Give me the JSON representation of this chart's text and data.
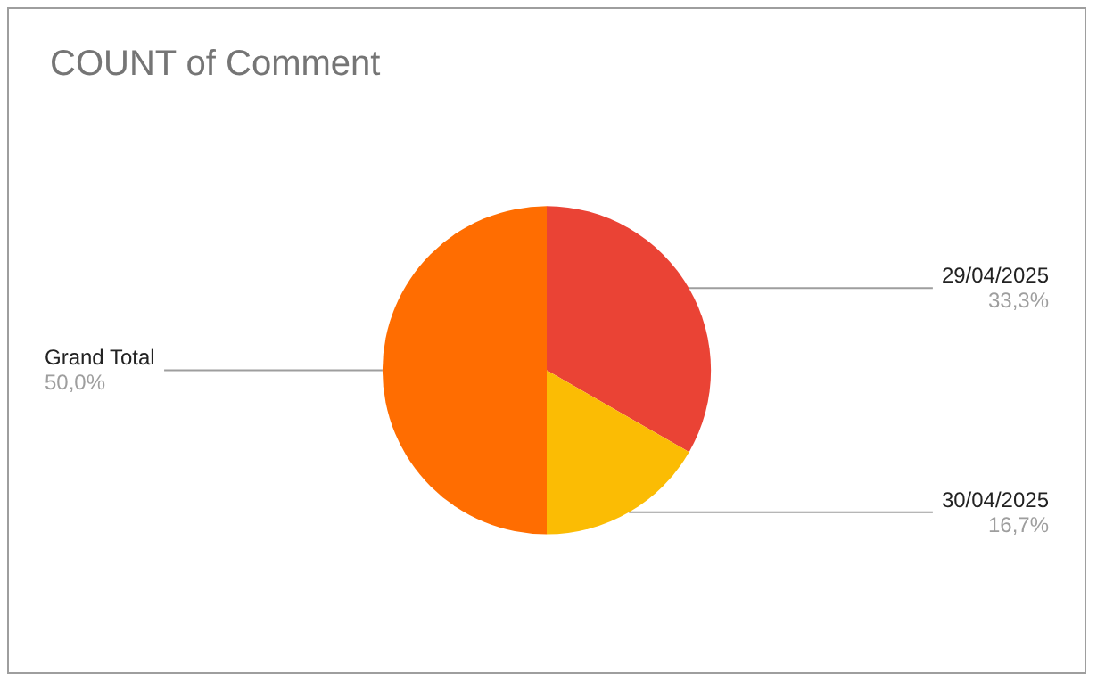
{
  "chart_data": {
    "type": "pie",
    "title": "COUNT of Comment",
    "categories": [
      "29/04/2025",
      "30/04/2025",
      "Grand Total"
    ],
    "values": [
      33.3,
      16.7,
      50.0
    ],
    "colors": [
      "#ea4335",
      "#fbbc04",
      "#ff6d01"
    ],
    "value_labels": [
      "33,3%",
      "16,7%",
      "50,0%"
    ],
    "legend": false
  }
}
